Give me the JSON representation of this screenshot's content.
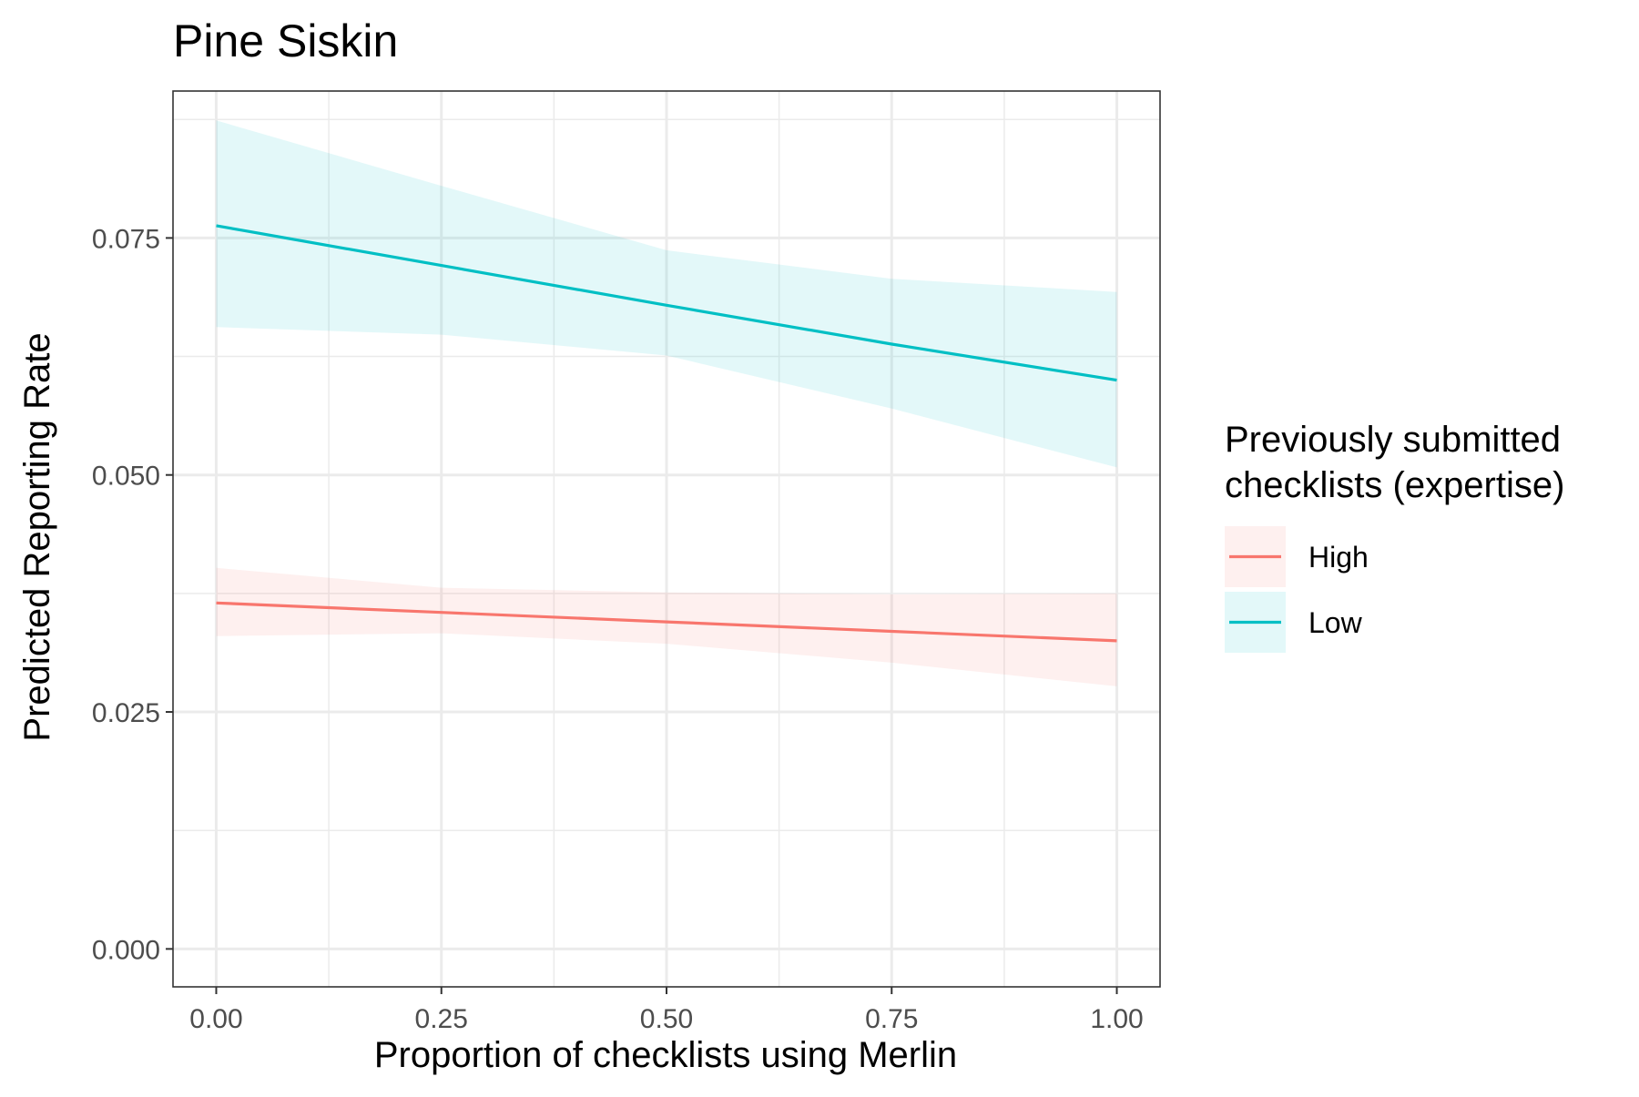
{
  "chart_data": {
    "type": "line",
    "title": "Pine Siskin",
    "xlabel": "Proportion of checklists using Merlin",
    "ylabel": "Predicted Reporting Rate",
    "xlim": [
      -0.048,
      1.048
    ],
    "ylim": [
      -0.004,
      0.0905
    ],
    "x_ticks": [
      0,
      0.25,
      0.5,
      0.75,
      1
    ],
    "x_tick_labels": [
      "0.00",
      "0.25",
      "0.50",
      "0.75",
      "1.00"
    ],
    "y_ticks": [
      0,
      0.025,
      0.05,
      0.075
    ],
    "y_tick_labels": [
      "0.000",
      "0.025",
      "0.050",
      "0.075"
    ],
    "grid": true,
    "legend": {
      "title_lines": [
        "Previously submitted",
        "checklists (expertise)"
      ],
      "position": "right"
    },
    "series": [
      {
        "name": "High",
        "color": "#F8766D",
        "x": [
          0,
          0.25,
          0.5,
          0.75,
          1
        ],
        "y": [
          0.0365,
          0.0355,
          0.0345,
          0.0335,
          0.0325
        ],
        "ci_lower": [
          0.033,
          0.0333,
          0.0322,
          0.0302,
          0.0277
        ],
        "ci_upper": [
          0.0402,
          0.0381,
          0.0376,
          0.0374,
          0.0375
        ]
      },
      {
        "name": "Low",
        "color": "#00BFC4",
        "x": [
          0,
          0.25,
          0.5,
          0.75,
          1
        ],
        "y": [
          0.0763,
          0.0721,
          0.0679,
          0.0638,
          0.06
        ],
        "ci_lower": [
          0.0656,
          0.0648,
          0.0626,
          0.057,
          0.0508
        ],
        "ci_upper": [
          0.0874,
          0.0805,
          0.0737,
          0.0707,
          0.0693
        ]
      }
    ]
  }
}
